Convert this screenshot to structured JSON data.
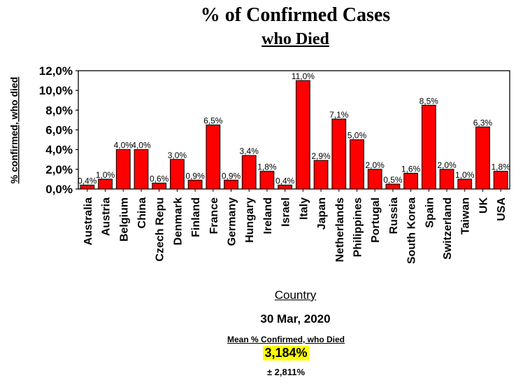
{
  "chart_data": {
    "type": "bar",
    "title": "% of Confirmed Cases",
    "subtitle": "who Died",
    "xlabel": "Country",
    "ylabel": "% confirmed, who died",
    "ylim": [
      0,
      12
    ],
    "yticks": [
      "0,0%",
      "2,0%",
      "4,0%",
      "6,0%",
      "8,0%",
      "10,0%",
      "12,0%"
    ],
    "categories": [
      "Australia",
      "Austria",
      "Belgium",
      "China",
      "Czech Repu",
      "Denmark",
      "Finland",
      "France",
      "Germany",
      "Hungary",
      "Ireland",
      "Israel",
      "Italy",
      "Japan",
      "Netherlands",
      "Philippines",
      "Portugal",
      "Russia",
      "South Korea",
      "Spain",
      "Switzerland",
      "Taiwan",
      "UK",
      "USA"
    ],
    "values": [
      0.4,
      1.0,
      4.0,
      4.0,
      0.6,
      3.0,
      0.9,
      6.5,
      0.9,
      3.4,
      1.8,
      0.4,
      11.0,
      2.9,
      7.1,
      5.0,
      2.0,
      0.5,
      1.6,
      8.5,
      2.0,
      1.0,
      6.3,
      1.8
    ],
    "data_labels": [
      "0,4%",
      "1,0%",
      "4,0%",
      "4,0%",
      "0,6%",
      "3,0%",
      "0,9%",
      "6,5%",
      "0,9%",
      "3,4%",
      "1,8%",
      "0,4%",
      "11,0%",
      "2,9%",
      "7,1%",
      "5,0%",
      "2,0%",
      "0,5%",
      "1,6%",
      "8,5%",
      "2,0%",
      "1,0%",
      "6,3%",
      "1,8%"
    ],
    "bar_color": "#ff0000",
    "grid": false,
    "legend": "none"
  },
  "footer": {
    "date": "30 Mar, 2020",
    "mean_label": "Mean % Confirmed, who Died",
    "mean_value": "3,184%",
    "std_dev": "± 2,811%"
  }
}
